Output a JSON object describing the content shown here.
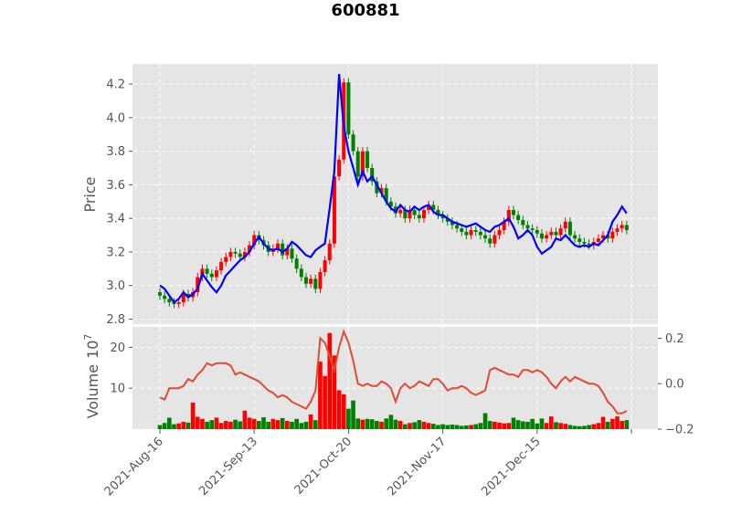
{
  "chart_data": {
    "type": "candlestick",
    "title": "600881",
    "ylabel_price": "Price",
    "ylabel_volume": "Volume",
    "volume_exponent": "10",
    "volume_exponent_power": "7",
    "colors": {
      "up": "#ff0000",
      "down": "#008000",
      "ma": "#0000ff",
      "secondary": "#e24a33",
      "panel_bg": "#e5e5e5",
      "grid": "#ffffff"
    },
    "x_ticks": [
      "2021-Aug-16",
      "2021-Sep-13",
      "2021-Oct-20",
      "2021-Nov-17",
      "2021-Dec-15"
    ],
    "x_tick_index": [
      0,
      20,
      40,
      60,
      80
    ],
    "n_periods": 100,
    "price_ylim": [
      2.77,
      4.32
    ],
    "price_ticks": [
      "2.8",
      "3.0",
      "3.2",
      "3.4",
      "3.6",
      "3.8",
      "4.0",
      "4.2"
    ],
    "price_tick_values": [
      2.8,
      3.0,
      3.2,
      3.4,
      3.6,
      3.8,
      4.0,
      4.2
    ],
    "volume_ylim": [
      0,
      25
    ],
    "volume_ticks": [
      "10",
      "20"
    ],
    "volume_tick_values": [
      10,
      20
    ],
    "secondary_ylim": [
      -0.2,
      0.25
    ],
    "secondary_ticks": [
      "0.2",
      "0.0",
      "−0.2"
    ],
    "secondary_tick_values": [
      0.2,
      0.0,
      -0.2
    ],
    "close": [
      2.94,
      2.92,
      2.9,
      2.89,
      2.9,
      2.95,
      2.93,
      2.96,
      3.05,
      3.1,
      3.07,
      3.05,
      3.09,
      3.14,
      3.17,
      3.2,
      3.19,
      3.17,
      3.2,
      3.24,
      3.3,
      3.27,
      3.24,
      3.2,
      3.22,
      3.25,
      3.18,
      3.22,
      3.16,
      3.1,
      3.05,
      3.01,
      3.04,
      2.98,
      3.08,
      3.15,
      3.25,
      3.65,
      3.75,
      4.21,
      3.9,
      3.8,
      3.65,
      3.8,
      3.7,
      3.62,
      3.55,
      3.58,
      3.5,
      3.47,
      3.43,
      3.45,
      3.4,
      3.45,
      3.42,
      3.4,
      3.45,
      3.48,
      3.45,
      3.42,
      3.4,
      3.38,
      3.36,
      3.34,
      3.32,
      3.3,
      3.33,
      3.32,
      3.3,
      3.28,
      3.25,
      3.3,
      3.33,
      3.38,
      3.45,
      3.42,
      3.39,
      3.36,
      3.34,
      3.33,
      3.31,
      3.28,
      3.3,
      3.32,
      3.3,
      3.34,
      3.38,
      3.3,
      3.28,
      3.26,
      3.25,
      3.24,
      3.26,
      3.28,
      3.3,
      3.28,
      3.32,
      3.34,
      3.36,
      3.33
    ],
    "moving_average": [
      3.0,
      2.98,
      2.94,
      2.9,
      2.92,
      2.96,
      2.93,
      2.95,
      2.98,
      3.07,
      3.03,
      2.99,
      2.96,
      3.0,
      3.06,
      3.09,
      3.12,
      3.15,
      3.17,
      3.2,
      3.25,
      3.29,
      3.25,
      3.22,
      3.21,
      3.22,
      3.2,
      3.22,
      3.26,
      3.24,
      3.21,
      3.18,
      3.17,
      3.21,
      3.23,
      3.25,
      3.46,
      3.68,
      4.26,
      3.95,
      3.8,
      3.7,
      3.6,
      3.68,
      3.62,
      3.65,
      3.6,
      3.55,
      3.5,
      3.46,
      3.44,
      3.48,
      3.45,
      3.44,
      3.47,
      3.45,
      3.47,
      3.48,
      3.44,
      3.42,
      3.42,
      3.4,
      3.38,
      3.37,
      3.36,
      3.35,
      3.36,
      3.37,
      3.35,
      3.33,
      3.32,
      3.35,
      3.36,
      3.38,
      3.4,
      3.35,
      3.28,
      3.3,
      3.33,
      3.3,
      3.23,
      3.19,
      3.21,
      3.23,
      3.28,
      3.27,
      3.3,
      3.27,
      3.24,
      3.23,
      3.24,
      3.23,
      3.25,
      3.24,
      3.27,
      3.3,
      3.38,
      3.42,
      3.47,
      3.43
    ],
    "volume": [
      1.0,
      1.5,
      2.8,
      1.2,
      1.4,
      1.8,
      1.6,
      6.5,
      3.0,
      2.5,
      1.8,
      2.2,
      2.8,
      1.5,
      2.0,
      1.8,
      2.3,
      1.9,
      4.5,
      2.8,
      2.5,
      2.0,
      2.9,
      1.8,
      2.5,
      2.2,
      2.7,
      2.0,
      1.8,
      2.5,
      1.5,
      1.8,
      3.6,
      2.2,
      16.5,
      13.0,
      23.5,
      18.0,
      9.5,
      8.5,
      5.0,
      7.0,
      2.6,
      2.3,
      2.5,
      2.4,
      2.0,
      1.8,
      2.6,
      3.5,
      2.3,
      2.0,
      1.2,
      1.5,
      1.7,
      2.2,
      1.8,
      1.5,
      1.3,
      1.0,
      1.2,
      1.0,
      1.1,
      1.0,
      0.8,
      0.9,
      1.0,
      1.2,
      1.5,
      3.9,
      2.0,
      1.8,
      1.6,
      1.4,
      1.5,
      2.8,
      2.2,
      1.9,
      1.8,
      2.5,
      1.4,
      2.6,
      1.5,
      3.1,
      1.7,
      1.5,
      1.3,
      1.0,
      0.8,
      0.7,
      0.8,
      1.0,
      1.2,
      1.5,
      3.0,
      1.8,
      2.5,
      3.1,
      2.0,
      2.2
    ],
    "secondary": [
      -0.06,
      -0.07,
      -0.02,
      -0.02,
      -0.02,
      -0.01,
      0.02,
      0.01,
      0.04,
      0.06,
      0.09,
      0.08,
      0.09,
      0.09,
      0.09,
      0.08,
      0.04,
      0.05,
      0.04,
      0.03,
      0.02,
      0.01,
      -0.01,
      -0.03,
      -0.04,
      -0.06,
      -0.05,
      -0.06,
      -0.08,
      -0.09,
      -0.1,
      -0.11,
      -0.08,
      -0.03,
      0.2,
      0.18,
      0.12,
      0.06,
      0.16,
      0.23,
      0.18,
      0.1,
      0.0,
      -0.01,
      0.0,
      -0.01,
      -0.01,
      0.01,
      0.0,
      -0.02,
      -0.08,
      -0.02,
      0.0,
      -0.02,
      -0.01,
      0.01,
      0.0,
      -0.01,
      0.02,
      0.02,
      0.0,
      -0.03,
      -0.02,
      -0.02,
      -0.01,
      -0.02,
      -0.04,
      -0.05,
      -0.04,
      -0.03,
      0.06,
      0.07,
      0.06,
      0.05,
      0.04,
      0.04,
      0.03,
      0.06,
      0.06,
      0.05,
      0.06,
      0.05,
      0.03,
      0.0,
      -0.02,
      0.01,
      0.03,
      0.01,
      0.03,
      0.02,
      0.01,
      0.0,
      0.0,
      -0.01,
      -0.04,
      -0.08,
      -0.1,
      -0.13,
      -0.13,
      -0.12
    ],
    "grid": true
  }
}
